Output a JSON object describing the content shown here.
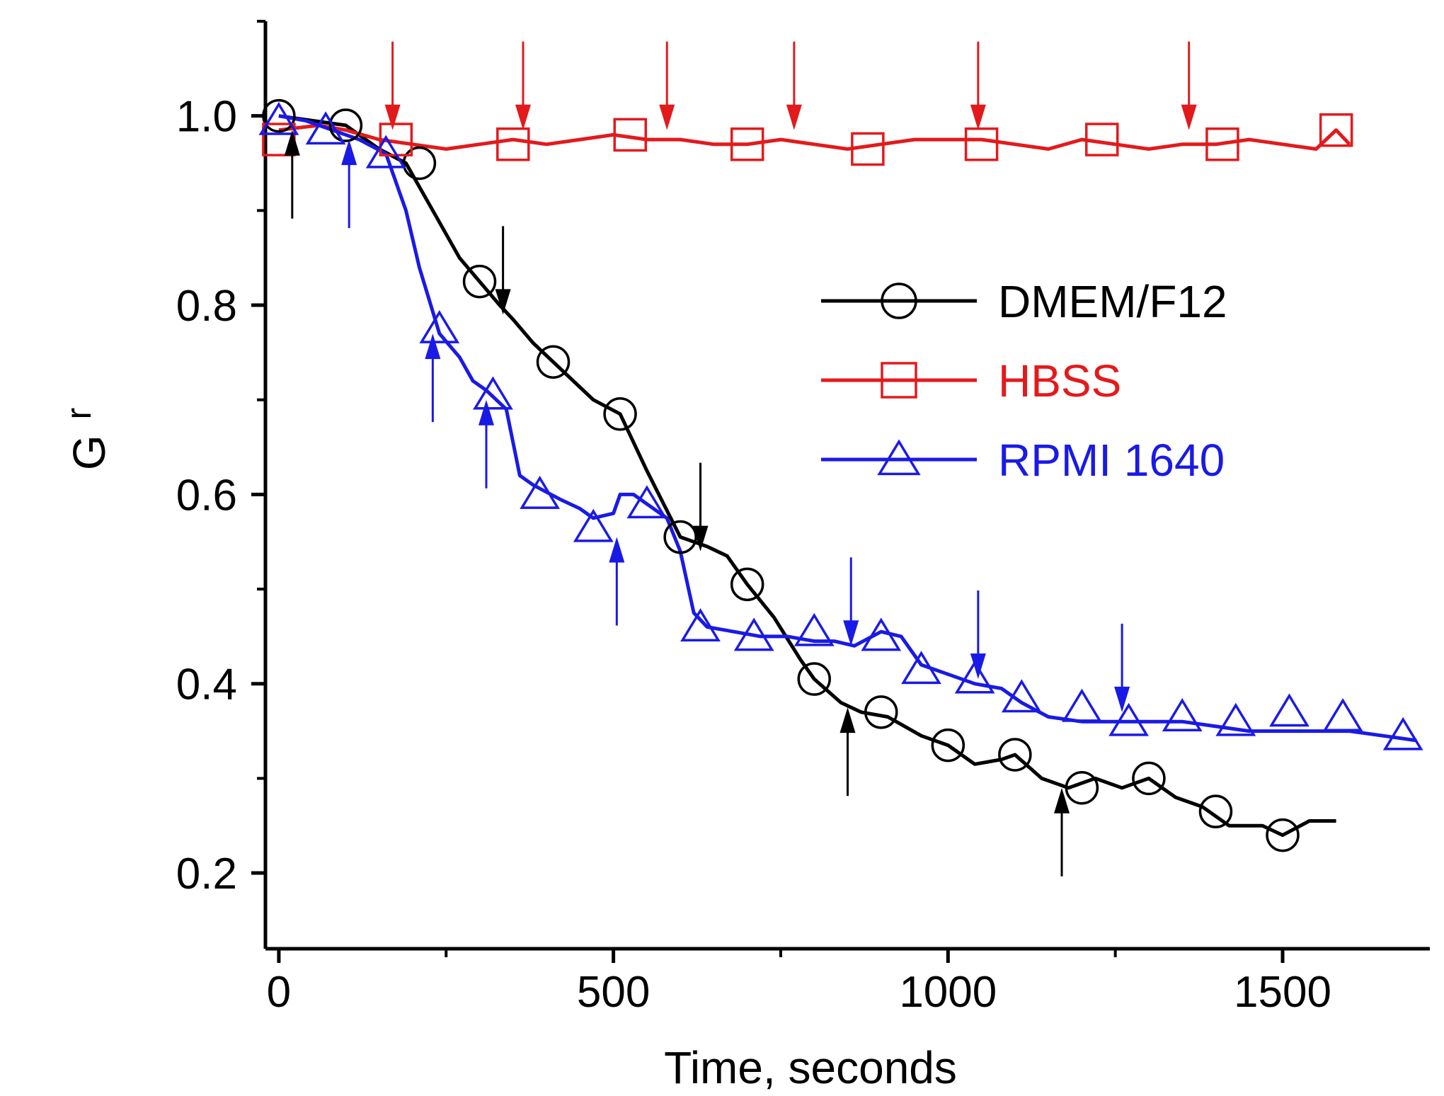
{
  "chart_data": {
    "type": "line",
    "title": "",
    "xlabel": "Time, seconds",
    "ylabel": "G",
    "ylabel_subscript": "r",
    "xlim": [
      -20,
      1720
    ],
    "ylim": [
      0.12,
      1.1
    ],
    "x_ticks": [
      0,
      500,
      1000,
      1500
    ],
    "x_tick_labels": [
      "0",
      "500",
      "1000",
      "1500"
    ],
    "y_ticks": [
      0.2,
      0.4,
      0.6,
      0.8,
      1.0
    ],
    "y_tick_labels": [
      "0.2",
      "0.4",
      "0.6",
      "0.8",
      "1.0"
    ],
    "legend_position": "center-right",
    "series": [
      {
        "name": "DMEM/F12",
        "color": "#000000",
        "marker": "circle",
        "line": [
          [
            0,
            1.0
          ],
          [
            50,
            0.995
          ],
          [
            100,
            0.99
          ],
          [
            150,
            0.965
          ],
          [
            190,
            0.95
          ],
          [
            230,
            0.9
          ],
          [
            270,
            0.85
          ],
          [
            300,
            0.825
          ],
          [
            330,
            0.8
          ],
          [
            350,
            0.785
          ],
          [
            380,
            0.76
          ],
          [
            410,
            0.74
          ],
          [
            440,
            0.72
          ],
          [
            470,
            0.7
          ],
          [
            510,
            0.685
          ],
          [
            550,
            0.625
          ],
          [
            600,
            0.555
          ],
          [
            640,
            0.545
          ],
          [
            670,
            0.535
          ],
          [
            700,
            0.505
          ],
          [
            740,
            0.47
          ],
          [
            780,
            0.425
          ],
          [
            800,
            0.405
          ],
          [
            840,
            0.38
          ],
          [
            870,
            0.37
          ],
          [
            910,
            0.365
          ],
          [
            960,
            0.345
          ],
          [
            1000,
            0.335
          ],
          [
            1040,
            0.315
          ],
          [
            1080,
            0.32
          ],
          [
            1100,
            0.325
          ],
          [
            1140,
            0.3
          ],
          [
            1180,
            0.29
          ],
          [
            1220,
            0.3
          ],
          [
            1260,
            0.29
          ],
          [
            1300,
            0.3
          ],
          [
            1340,
            0.28
          ],
          [
            1380,
            0.27
          ],
          [
            1420,
            0.25
          ],
          [
            1470,
            0.25
          ],
          [
            1500,
            0.24
          ],
          [
            1540,
            0.255
          ],
          [
            1580,
            0.255
          ]
        ],
        "markers": [
          [
            0,
            1.0
          ],
          [
            100,
            0.99
          ],
          [
            210,
            0.95
          ],
          [
            300,
            0.825
          ],
          [
            410,
            0.74
          ],
          [
            510,
            0.685
          ],
          [
            600,
            0.555
          ],
          [
            700,
            0.505
          ],
          [
            800,
            0.405
          ],
          [
            900,
            0.37
          ],
          [
            1000,
            0.335
          ],
          [
            1100,
            0.325
          ],
          [
            1200,
            0.29
          ],
          [
            1300,
            0.3
          ],
          [
            1400,
            0.265
          ],
          [
            1500,
            0.24
          ]
        ]
      },
      {
        "name": "HBSS",
        "color": "#e31a1c",
        "marker": "square",
        "line": [
          [
            0,
            0.985
          ],
          [
            60,
            0.99
          ],
          [
            100,
            0.985
          ],
          [
            150,
            0.975
          ],
          [
            200,
            0.97
          ],
          [
            250,
            0.965
          ],
          [
            300,
            0.97
          ],
          [
            350,
            0.975
          ],
          [
            400,
            0.97
          ],
          [
            450,
            0.975
          ],
          [
            500,
            0.98
          ],
          [
            550,
            0.975
          ],
          [
            600,
            0.975
          ],
          [
            650,
            0.97
          ],
          [
            700,
            0.97
          ],
          [
            750,
            0.975
          ],
          [
            800,
            0.97
          ],
          [
            850,
            0.965
          ],
          [
            900,
            0.97
          ],
          [
            950,
            0.975
          ],
          [
            1000,
            0.975
          ],
          [
            1050,
            0.975
          ],
          [
            1100,
            0.97
          ],
          [
            1150,
            0.965
          ],
          [
            1200,
            0.975
          ],
          [
            1250,
            0.97
          ],
          [
            1300,
            0.965
          ],
          [
            1350,
            0.97
          ],
          [
            1400,
            0.97
          ],
          [
            1450,
            0.975
          ],
          [
            1500,
            0.97
          ],
          [
            1550,
            0.965
          ],
          [
            1580,
            0.985
          ],
          [
            1600,
            0.97
          ]
        ],
        "markers": [
          [
            0,
            0.975
          ],
          [
            175,
            0.975
          ],
          [
            350,
            0.97
          ],
          [
            525,
            0.98
          ],
          [
            700,
            0.97
          ],
          [
            880,
            0.965
          ],
          [
            1050,
            0.97
          ],
          [
            1230,
            0.975
          ],
          [
            1410,
            0.97
          ],
          [
            1580,
            0.985
          ]
        ]
      },
      {
        "name": "RPMI 1640",
        "color": "#1a1ae6",
        "marker": "triangle",
        "line": [
          [
            0,
            1.0
          ],
          [
            40,
            0.995
          ],
          [
            80,
            0.985
          ],
          [
            120,
            0.975
          ],
          [
            160,
            0.96
          ],
          [
            190,
            0.9
          ],
          [
            210,
            0.84
          ],
          [
            240,
            0.77
          ],
          [
            270,
            0.745
          ],
          [
            290,
            0.72
          ],
          [
            310,
            0.71
          ],
          [
            340,
            0.69
          ],
          [
            360,
            0.62
          ],
          [
            380,
            0.61
          ],
          [
            420,
            0.595
          ],
          [
            450,
            0.585
          ],
          [
            470,
            0.575
          ],
          [
            500,
            0.58
          ],
          [
            510,
            0.6
          ],
          [
            530,
            0.6
          ],
          [
            560,
            0.585
          ],
          [
            580,
            0.575
          ],
          [
            600,
            0.54
          ],
          [
            620,
            0.475
          ],
          [
            640,
            0.46
          ],
          [
            680,
            0.455
          ],
          [
            720,
            0.45
          ],
          [
            760,
            0.45
          ],
          [
            800,
            0.445
          ],
          [
            830,
            0.445
          ],
          [
            860,
            0.44
          ],
          [
            900,
            0.455
          ],
          [
            930,
            0.45
          ],
          [
            960,
            0.42
          ],
          [
            1000,
            0.41
          ],
          [
            1040,
            0.4
          ],
          [
            1080,
            0.395
          ],
          [
            1110,
            0.38
          ],
          [
            1150,
            0.365
          ],
          [
            1200,
            0.36
          ],
          [
            1250,
            0.36
          ],
          [
            1300,
            0.36
          ],
          [
            1350,
            0.36
          ],
          [
            1400,
            0.355
          ],
          [
            1450,
            0.35
          ],
          [
            1500,
            0.35
          ],
          [
            1550,
            0.35
          ],
          [
            1600,
            0.35
          ],
          [
            1650,
            0.345
          ],
          [
            1700,
            0.34
          ]
        ],
        "markers": [
          [
            0,
            0.995
          ],
          [
            70,
            0.985
          ],
          [
            160,
            0.96
          ],
          [
            240,
            0.775
          ],
          [
            320,
            0.705
          ],
          [
            390,
            0.6
          ],
          [
            470,
            0.565
          ],
          [
            550,
            0.59
          ],
          [
            630,
            0.46
          ],
          [
            710,
            0.45
          ],
          [
            800,
            0.455
          ],
          [
            900,
            0.45
          ],
          [
            960,
            0.415
          ],
          [
            1040,
            0.405
          ],
          [
            1110,
            0.385
          ],
          [
            1200,
            0.375
          ],
          [
            1270,
            0.36
          ],
          [
            1350,
            0.365
          ],
          [
            1430,
            0.36
          ],
          [
            1510,
            0.37
          ],
          [
            1590,
            0.365
          ],
          [
            1680,
            0.345
          ]
        ]
      }
    ],
    "annotations": [
      {
        "type": "arrow",
        "color": "#000000",
        "at": [
          20,
          0.985
        ],
        "direction": "up"
      },
      {
        "type": "arrow",
        "color": "#000000",
        "at": [
          335,
          0.79
        ],
        "direction": "down"
      },
      {
        "type": "arrow",
        "color": "#000000",
        "at": [
          630,
          0.54
        ],
        "direction": "down"
      },
      {
        "type": "arrow",
        "color": "#000000",
        "at": [
          850,
          0.375
        ],
        "direction": "up"
      },
      {
        "type": "arrow",
        "color": "#000000",
        "at": [
          1170,
          0.29
        ],
        "direction": "up"
      },
      {
        "type": "arrow",
        "color": "#e31a1c",
        "at": [
          170,
          0.985
        ],
        "direction": "down"
      },
      {
        "type": "arrow",
        "color": "#e31a1c",
        "at": [
          365,
          0.985
        ],
        "direction": "down"
      },
      {
        "type": "arrow",
        "color": "#e31a1c",
        "at": [
          580,
          0.985
        ],
        "direction": "down"
      },
      {
        "type": "arrow",
        "color": "#e31a1c",
        "at": [
          770,
          0.985
        ],
        "direction": "down"
      },
      {
        "type": "arrow",
        "color": "#e31a1c",
        "at": [
          1045,
          0.985
        ],
        "direction": "down"
      },
      {
        "type": "arrow",
        "color": "#e31a1c",
        "at": [
          1360,
          0.985
        ],
        "direction": "down"
      },
      {
        "type": "arrow",
        "color": "#1a1ae6",
        "at": [
          105,
          0.975
        ],
        "direction": "up"
      },
      {
        "type": "arrow",
        "color": "#1a1ae6",
        "at": [
          230,
          0.77
        ],
        "direction": "up"
      },
      {
        "type": "arrow",
        "color": "#1a1ae6",
        "at": [
          310,
          0.7
        ],
        "direction": "up"
      },
      {
        "type": "arrow",
        "color": "#1a1ae6",
        "at": [
          505,
          0.555
        ],
        "direction": "up"
      },
      {
        "type": "arrow",
        "color": "#1a1ae6",
        "at": [
          855,
          0.44
        ],
        "direction": "down"
      },
      {
        "type": "arrow",
        "color": "#1a1ae6",
        "at": [
          1045,
          0.405
        ],
        "direction": "down"
      },
      {
        "type": "arrow",
        "color": "#1a1ae6",
        "at": [
          1260,
          0.37
        ],
        "direction": "down"
      }
    ]
  }
}
